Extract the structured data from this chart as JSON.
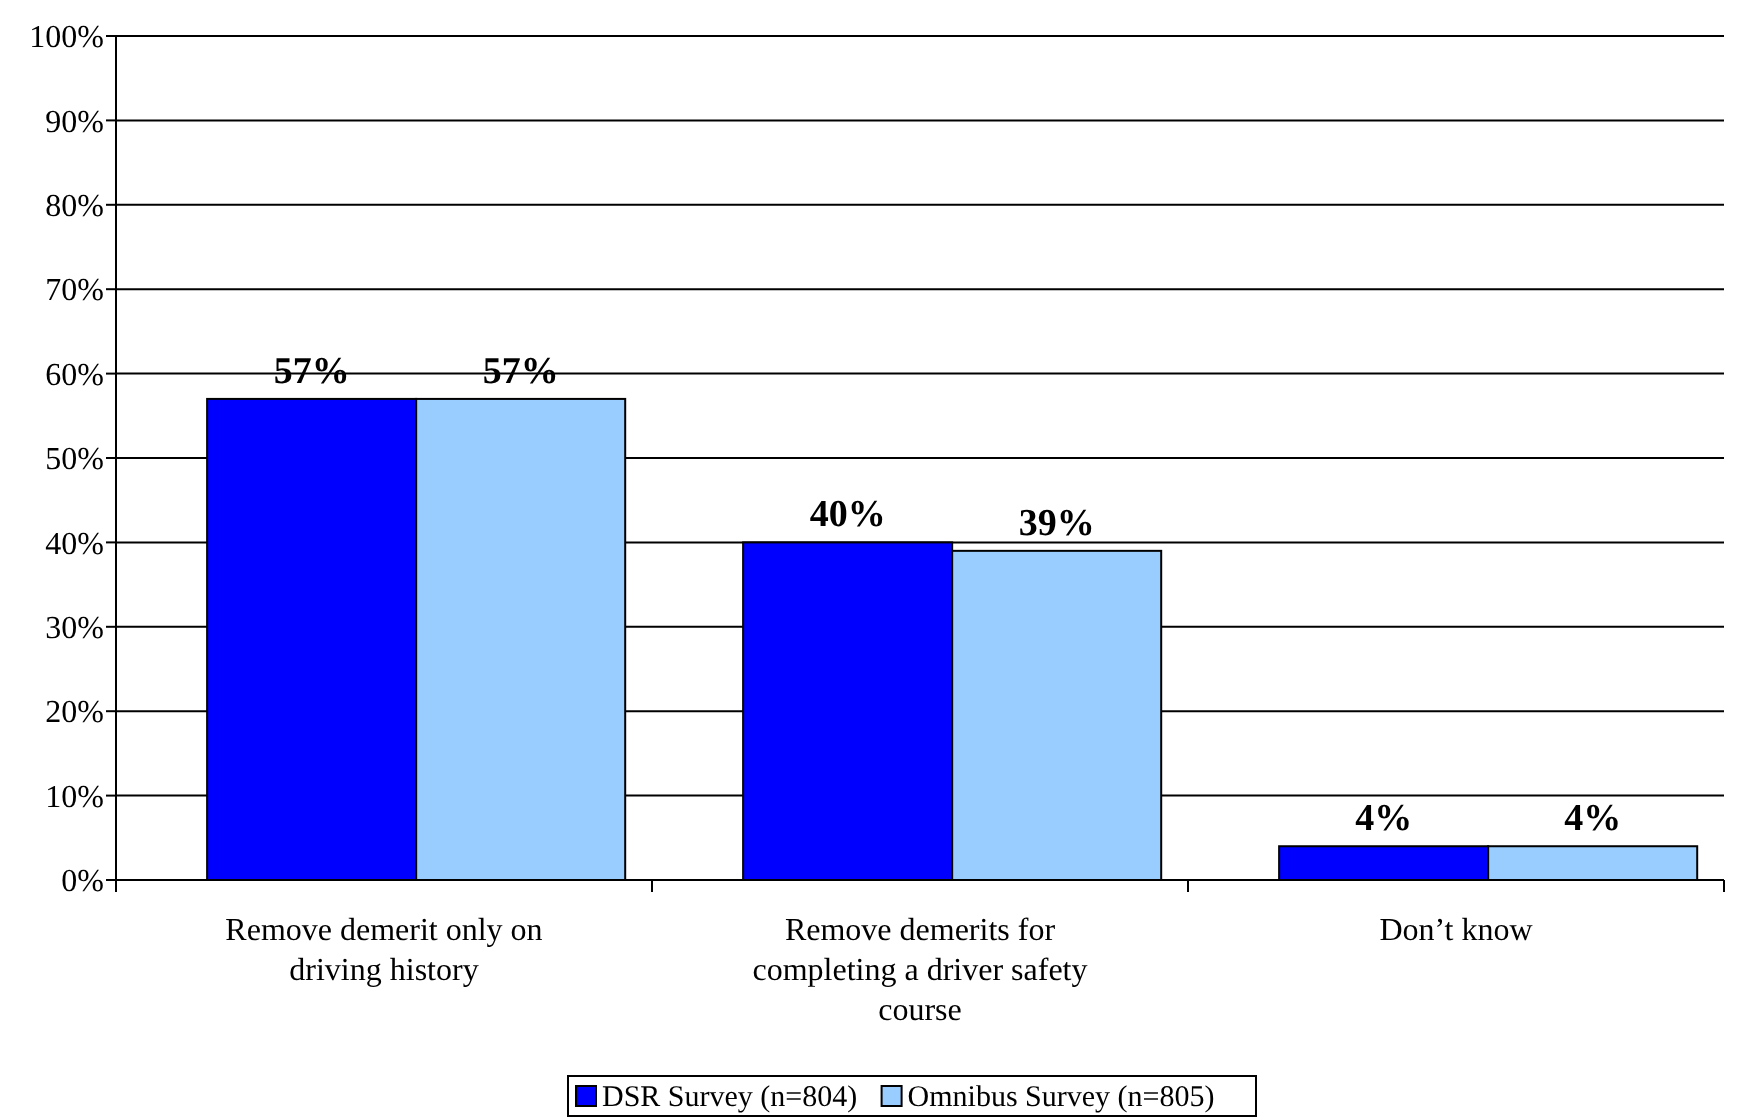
{
  "chart_data": {
    "type": "bar",
    "categories": [
      "Remove demerit only on driving history",
      "Remove demerits for completing a driver safety course",
      "Don’t know"
    ],
    "series": [
      {
        "name": "DSR Survey (n=804)",
        "color": "#0000ff",
        "values": [
          57,
          40,
          4
        ],
        "value_labels": [
          "57%",
          "40%",
          "4%"
        ]
      },
      {
        "name": "Omnibus Survey (n=805)",
        "color": "#99ccff",
        "values": [
          57,
          39,
          4
        ],
        "value_labels": [
          "57%",
          "39%",
          "4%"
        ]
      }
    ],
    "ylim": [
      0,
      100
    ],
    "yticks": [
      {
        "value": 0,
        "label": "0%"
      },
      {
        "value": 10,
        "label": "10%"
      },
      {
        "value": 20,
        "label": "20%"
      },
      {
        "value": 30,
        "label": "30%"
      },
      {
        "value": 40,
        "label": "40%"
      },
      {
        "value": 50,
        "label": "50%"
      },
      {
        "value": 60,
        "label": "60%"
      },
      {
        "value": 70,
        "label": "70%"
      },
      {
        "value": 80,
        "label": "80%"
      },
      {
        "value": 90,
        "label": "90%"
      },
      {
        "value": 100,
        "label": "100%"
      }
    ],
    "grid": "y",
    "legend": "bottom"
  }
}
